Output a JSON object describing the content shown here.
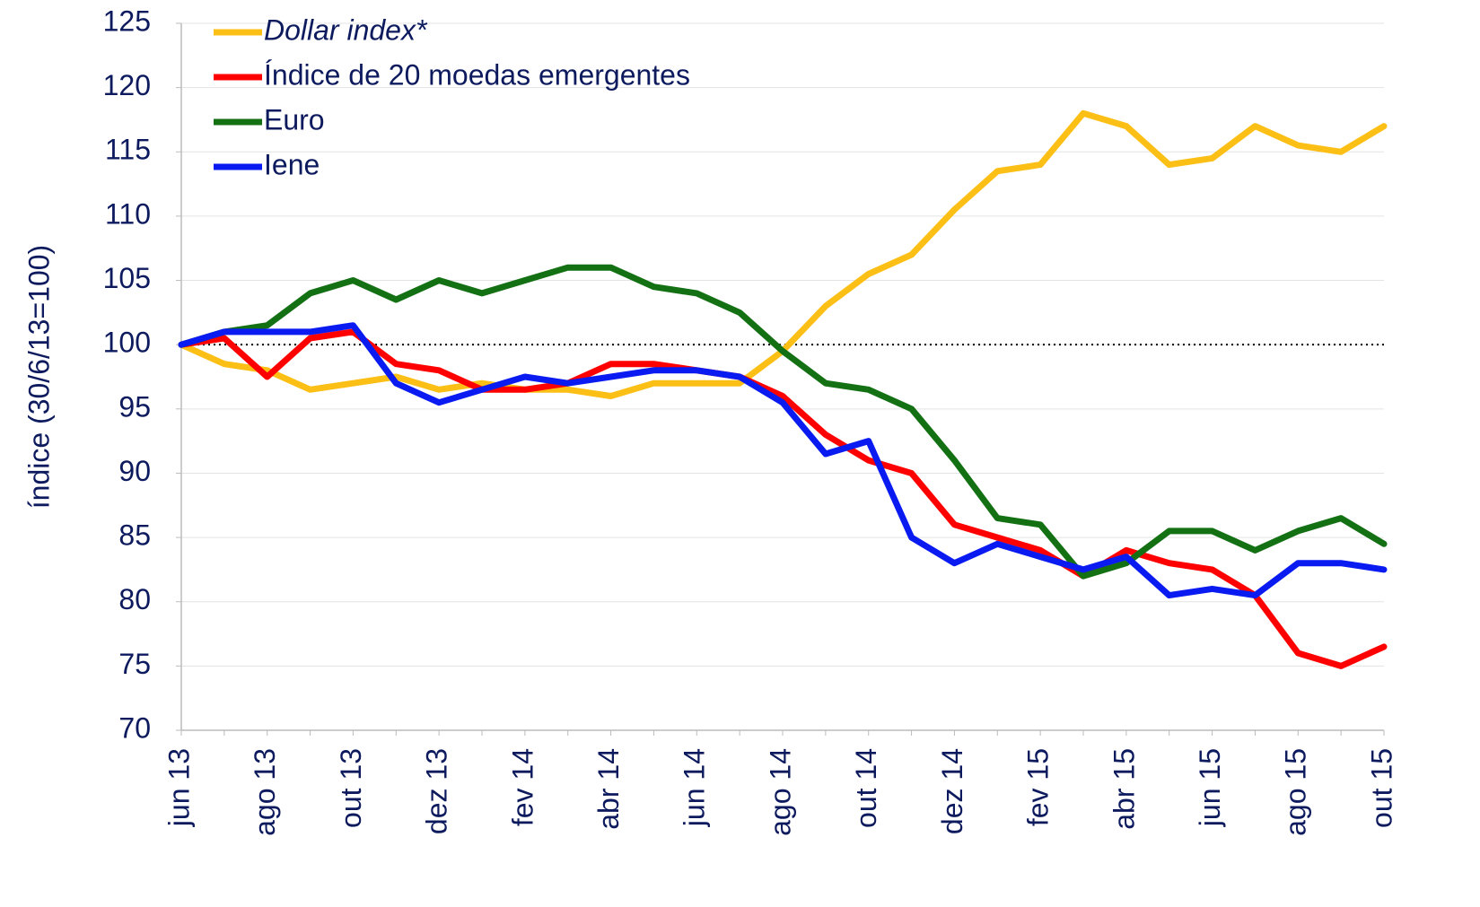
{
  "chart_data": {
    "type": "line",
    "y_label": "índice (30/6/13=100)",
    "categories": [
      "jun 13",
      null,
      "ago 13",
      null,
      "out 13",
      null,
      "dez 13",
      null,
      "fev 14",
      null,
      "abr 14",
      null,
      "jun 14",
      null,
      "ago 14",
      null,
      "out 14",
      null,
      "dez 14",
      null,
      "fev 15",
      null,
      "abr 15",
      null,
      "jun 15",
      null,
      "ago 15",
      null,
      "out 15"
    ],
    "series": [
      {
        "name": "Dollar index*",
        "color": "#fcbf16",
        "values": [
          100,
          98.5,
          98,
          96.5,
          97,
          97.5,
          96.5,
          97,
          96.5,
          96.5,
          96,
          97,
          97,
          97,
          99.5,
          103,
          105.5,
          107,
          110.5,
          113.5,
          114,
          118,
          117,
          114,
          114.5,
          117,
          115.5,
          115,
          117
        ]
      },
      {
        "name": "Índice de 20 moedas emergentes",
        "color": "#ff0000",
        "values": [
          100,
          100.5,
          97.5,
          100.5,
          101,
          98.5,
          98,
          96.5,
          96.5,
          97,
          98.5,
          98.5,
          98,
          97.5,
          96,
          93,
          91,
          90,
          86,
          85,
          84,
          82,
          84,
          83,
          82.5,
          80.5,
          76,
          75,
          76.5
        ]
      },
      {
        "name": "Euro",
        "color": "#137013",
        "values": [
          100,
          101,
          101.5,
          104,
          105,
          103.5,
          105,
          104,
          105,
          106,
          106,
          104.5,
          104,
          102.5,
          99.5,
          97,
          96.5,
          95,
          91,
          86.5,
          86,
          82,
          83,
          85.5,
          85.5,
          84,
          85.5,
          86.5,
          84.5
        ]
      },
      {
        "name": "Iene",
        "color": "#0a1bf2",
        "values": [
          100,
          101,
          101,
          101,
          101.5,
          97,
          95.5,
          96.5,
          97.5,
          97,
          97.5,
          98,
          98,
          97.5,
          95.5,
          91.5,
          92.5,
          85,
          83,
          84.5,
          83.5,
          82.5,
          83.5,
          80.5,
          81,
          80.5,
          83,
          83,
          82.5
        ]
      }
    ],
    "reference_line": 100,
    "ylim": [
      70,
      125
    ],
    "yticks": [
      70,
      75,
      80,
      85,
      90,
      95,
      100,
      105,
      110,
      115,
      120,
      125
    ],
    "grid": true
  }
}
